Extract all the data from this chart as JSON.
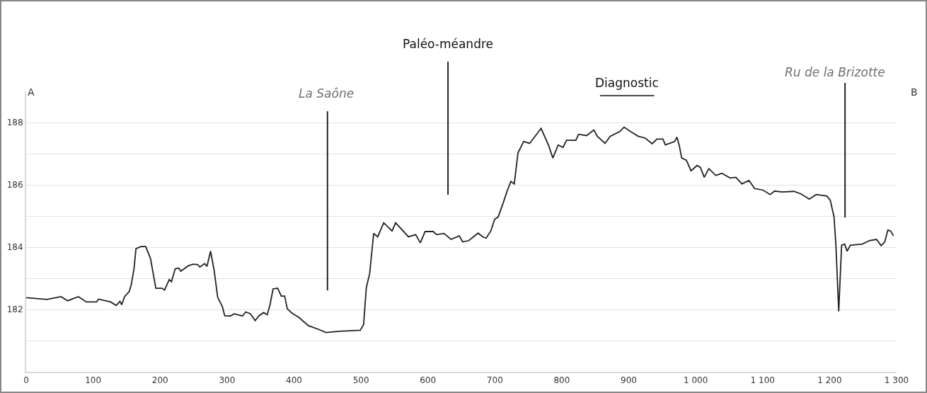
{
  "chart_data": {
    "type": "line",
    "annotations": [
      "A",
      "B"
    ],
    "ref_lines": [
      {
        "axis": "x",
        "value": 450,
        "label": "La Saône",
        "color": "#222222"
      },
      {
        "axis": "x",
        "value": 630,
        "label": "Paléo-méandre",
        "color": "#222222"
      },
      {
        "axis": "x",
        "value": 1223,
        "label": "Ru de la Brizotte",
        "color": "#222222"
      }
    ],
    "series": [
      {
        "type": "line",
        "name": "Diagnostic",
        "color": "#333333",
        "x": [
          857,
          938
        ],
        "values": [
          188.86,
          188.86
        ]
      },
      {
        "color": "#222222",
        "x": [
          0,
          31,
          52,
          62,
          78,
          90,
          105,
          108,
          126,
          134.5,
          140,
          142.6,
          147,
          154,
          157,
          161,
          164,
          171.5,
          178.5,
          185.6,
          193.7,
          203,
          206.7,
          213.7,
          217,
          222.5,
          227.8,
          231,
          242,
          249,
          256,
          259.5,
          266.5,
          270,
          275.4,
          280.6,
          286,
          293,
          296.5,
          305,
          310.6,
          323,
          328,
          335,
          342,
          347.5,
          354.6,
          360,
          364.4,
          368.7,
          375.7,
          381,
          386,
          390,
          397,
          407,
          421.5,
          435.6,
          448,
          467,
          499,
          504,
          508,
          513,
          519,
          525,
          534,
          546.5,
          551.8,
          571,
          581.7,
          588.7,
          595.8,
          608,
          613,
          624,
          634.5,
          646.8,
          652,
          661,
          675,
          682,
          687,
          694,
          699.6,
          704.9,
          712,
          719,
          724,
          729,
          734.5,
          743,
          752,
          769,
          780,
          786.6,
          794.7,
          801.8,
          807,
          821,
          825,
          837,
          847.9,
          853,
          864.6,
          872,
          886.6,
          893,
          903.5,
          914,
          924.6,
          935,
          942,
          951,
          954.6,
          968.7,
          972,
          975.7,
          979,
          986,
          993,
          1002,
          1007,
          1012.7,
          1019.7,
          1030,
          1039,
          1051.4,
          1060,
          1069,
          1079.6,
          1088,
          1100.7,
          1111,
          1118,
          1129,
          1146.6,
          1157,
          1169.6,
          1180,
          1196,
          1201,
          1206.6,
          1209.4,
          1213.6,
          1217.9,
          1222.5,
          1226,
          1231,
          1249,
          1259.5,
          1270,
          1277,
          1282.4,
          1287,
          1291,
          1295.4
        ],
        "values": [
          182.38,
          182.32,
          182.41,
          182.28,
          182.41,
          182.24,
          182.24,
          182.33,
          182.24,
          182.13,
          182.26,
          182.15,
          182.41,
          182.58,
          182.8,
          183.3,
          183.95,
          184.02,
          184.02,
          183.64,
          182.68,
          182.68,
          182.62,
          182.96,
          182.89,
          183.3,
          183.33,
          183.23,
          183.4,
          183.45,
          183.44,
          183.36,
          183.47,
          183.38,
          183.87,
          183.27,
          182.39,
          182.09,
          181.8,
          181.79,
          181.86,
          181.79,
          181.92,
          181.86,
          181.64,
          181.79,
          181.9,
          181.83,
          182.17,
          182.66,
          182.68,
          182.43,
          182.43,
          182.02,
          181.88,
          181.75,
          181.48,
          181.37,
          181.26,
          181.3,
          181.33,
          181.52,
          182.7,
          183.15,
          184.44,
          184.33,
          184.78,
          184.52,
          184.78,
          184.33,
          184.4,
          184.14,
          184.5,
          184.5,
          184.4,
          184.44,
          184.25,
          184.36,
          184.17,
          184.21,
          184.45,
          184.33,
          184.29,
          184.52,
          184.89,
          184.97,
          185.39,
          185.84,
          186.11,
          186.03,
          187.02,
          187.39,
          187.33,
          187.81,
          187.28,
          186.86,
          187.28,
          187.2,
          187.43,
          187.43,
          187.62,
          187.58,
          187.76,
          187.56,
          187.33,
          187.55,
          187.71,
          187.85,
          187.7,
          187.56,
          187.5,
          187.32,
          187.47,
          187.47,
          187.28,
          187.39,
          187.53,
          187.24,
          186.86,
          186.79,
          186.45,
          186.62,
          186.56,
          186.24,
          186.52,
          186.3,
          186.37,
          186.22,
          186.24,
          186.03,
          186.14,
          185.88,
          185.83,
          185.69,
          185.8,
          185.77,
          185.79,
          185.71,
          185.54,
          185.69,
          185.64,
          185.5,
          184.97,
          184.06,
          181.94,
          184.06,
          184.1,
          183.87,
          184.06,
          184.1,
          184.21,
          184.25,
          184.05,
          184.17,
          184.55,
          184.52,
          184.36
        ]
      }
    ],
    "xlim": [
      0,
      1300
    ],
    "xticks": [
      0,
      100,
      200,
      300,
      400,
      500,
      600,
      700,
      800,
      900,
      {
        "value": 1000,
        "label": "1 000"
      },
      {
        "value": 1100,
        "label": "1 100"
      },
      {
        "value": 1200,
        "label": "1 200"
      },
      {
        "value": 1300,
        "label": "1 300"
      }
    ],
    "ylim": [
      180,
      189
    ],
    "yticks": [
      {
        "value": 181,
        "label": null
      },
      182,
      {
        "value": 183,
        "label": null
      },
      184,
      {
        "value": 185,
        "label": null
      },
      186,
      {
        "value": 187,
        "label": null
      },
      188
    ],
    "grid": "y",
    "legend": false,
    "marker": "none",
    "line_style": "solid"
  }
}
